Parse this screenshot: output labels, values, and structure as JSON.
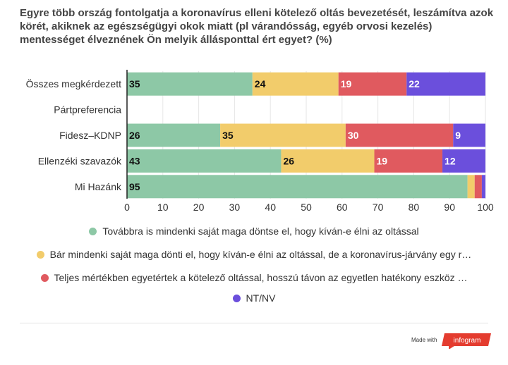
{
  "title": "Egyre több ország fontolgatja a koronavírus elleni kötelező oltás bevezetését, leszámítva azok körét, akiknek az egészségügyi okok miatt (pl  várandósság, egyéb orvosi kezelés) mentességet élveznének  Ön melyik állásponttal ért egyet? (%)",
  "chart_data": {
    "type": "bar",
    "orientation": "horizontal",
    "stacked": true,
    "categories": [
      "Összes megkérdezett",
      "Pártpreferencia",
      "Fidesz–KDNP",
      "Ellenzéki szavazók",
      "Mi Hazánk"
    ],
    "series": [
      {
        "name": "Továbbra is mindenki saját maga döntse el, hogy kíván-e élni az oltással",
        "color": "#8dc8a6",
        "values": [
          35,
          null,
          26,
          43,
          95
        ]
      },
      {
        "name": "Bár mindenki saját maga dönti el, hogy kíván-e élni az oltással, de a koronavírus-járvány egy r…",
        "color": "#f2cc6b",
        "values": [
          24,
          null,
          35,
          26,
          2
        ]
      },
      {
        "name": "Teljes mértékben egyetértek a kötelező oltással, hosszú távon az egyetlen hatékony eszköz …",
        "color": "#e05a5f",
        "values": [
          19,
          null,
          30,
          19,
          2
        ]
      },
      {
        "name": "NT/NV",
        "color": "#6b4fdc",
        "values": [
          22,
          null,
          9,
          12,
          1
        ]
      }
    ],
    "value_labels": [
      [
        "35",
        "24",
        "19",
        "22"
      ],
      [
        "",
        "",
        "",
        ""
      ],
      [
        "26",
        "35",
        "30",
        "9"
      ],
      [
        "43",
        "26",
        "19",
        "12"
      ],
      [
        "95",
        "",
        "",
        ""
      ]
    ],
    "xlim": [
      0,
      100
    ],
    "xticks": [
      "0",
      "10",
      "20",
      "30",
      "40",
      "50",
      "60",
      "70",
      "80",
      "90",
      "100"
    ],
    "xlabel": "",
    "ylabel": "",
    "legend_position": "bottom"
  },
  "footer": {
    "made_with": "Made with",
    "brand": "infogram"
  }
}
